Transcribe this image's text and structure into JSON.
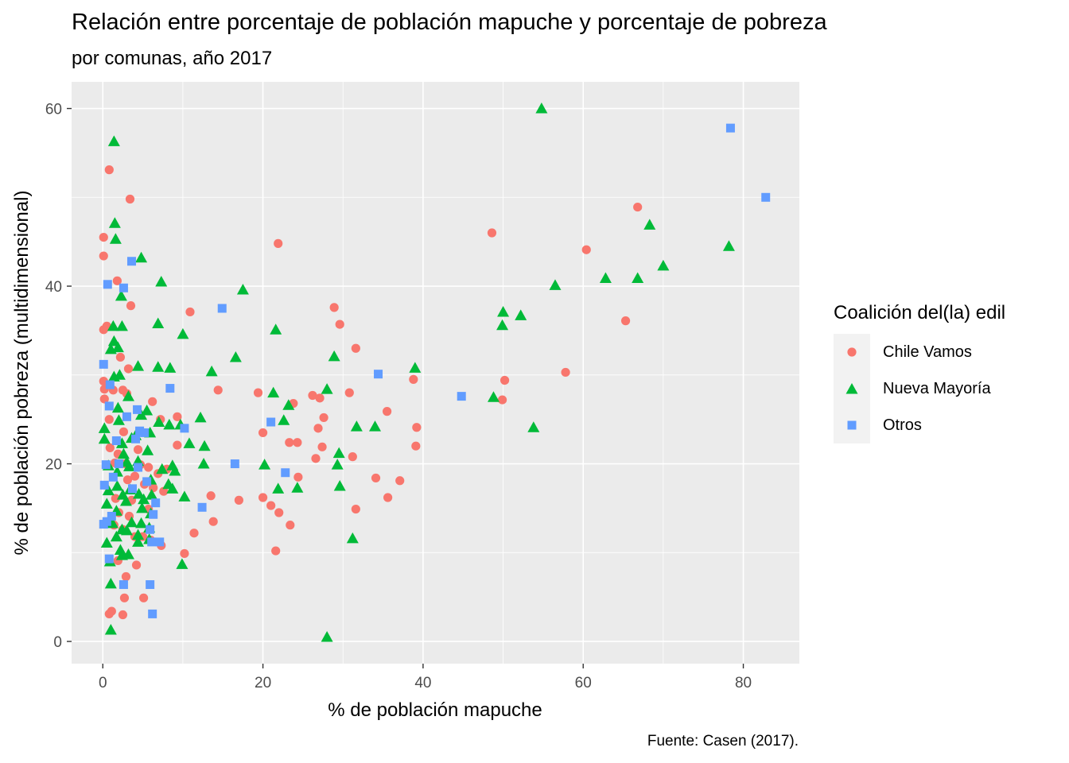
{
  "chart_data": {
    "type": "scatter",
    "title": "Relación entre porcentaje de población mapuche y porcentaje de pobreza",
    "subtitle": "por comunas, año 2017",
    "xlabel": "% de población mapuche",
    "ylabel": "% de población pobreza (multidimensional)",
    "caption": "Fuente: Casen (2017).",
    "xlim": [
      -3.9,
      87
    ],
    "ylim": [
      -2.5,
      63
    ],
    "x_ticks": [
      0,
      20,
      40,
      60,
      80
    ],
    "y_ticks": [
      0,
      20,
      40,
      60
    ],
    "grid": true,
    "legend_title": "Coalición del(la) edil",
    "legend_position": "right",
    "series": [
      {
        "name": "Chile Vamos",
        "shape": "circle",
        "color": "#F8766D",
        "points": [
          [
            0.8,
            53.1
          ],
          [
            3.4,
            49.8
          ],
          [
            0.1,
            45.5
          ],
          [
            0.1,
            43.4
          ],
          [
            1.8,
            40.6
          ],
          [
            3.5,
            37.8
          ],
          [
            0.5,
            35.5
          ],
          [
            0.1,
            35.1
          ],
          [
            2.2,
            32.0
          ],
          [
            3.2,
            30.7
          ],
          [
            0.1,
            29.3
          ],
          [
            0.2,
            28.4
          ],
          [
            1.3,
            28.3
          ],
          [
            2.5,
            28.3
          ],
          [
            3.0,
            27.9
          ],
          [
            0.2,
            27.3
          ],
          [
            6.2,
            27.0
          ],
          [
            7.2,
            25.0
          ],
          [
            9.3,
            25.3
          ],
          [
            0.8,
            25.0
          ],
          [
            2.6,
            23.6
          ],
          [
            4.4,
            21.6
          ],
          [
            0.9,
            21.8
          ],
          [
            1.9,
            21.1
          ],
          [
            1.5,
            20.1
          ],
          [
            2.8,
            20.0
          ],
          [
            4.7,
            19.9
          ],
          [
            5.7,
            19.6
          ],
          [
            6.9,
            18.9
          ],
          [
            8.0,
            19.4
          ],
          [
            3.1,
            18.2
          ],
          [
            4.0,
            18.6
          ],
          [
            5.2,
            17.7
          ],
          [
            6.3,
            17.3
          ],
          [
            7.6,
            16.9
          ],
          [
            1.6,
            16.1
          ],
          [
            3.6,
            15.9
          ],
          [
            5.7,
            14.9
          ],
          [
            2.0,
            14.5
          ],
          [
            3.3,
            14.1
          ],
          [
            1.4,
            13.1
          ],
          [
            2.5,
            12.6
          ],
          [
            4.0,
            11.8
          ],
          [
            5.0,
            11.8
          ],
          [
            6.0,
            11.4
          ],
          [
            7.3,
            10.8
          ],
          [
            1.9,
            9.1
          ],
          [
            4.2,
            8.6
          ],
          [
            2.9,
            7.3
          ],
          [
            2.7,
            4.9
          ],
          [
            5.1,
            4.9
          ],
          [
            1.1,
            3.4
          ],
          [
            0.8,
            3.1
          ],
          [
            2.5,
            3.0
          ],
          [
            10.9,
            37.1
          ],
          [
            21.9,
            44.8
          ],
          [
            14.4,
            28.3
          ],
          [
            9.3,
            22.1
          ],
          [
            13.5,
            16.4
          ],
          [
            17.0,
            15.9
          ],
          [
            13.8,
            13.5
          ],
          [
            11.4,
            12.2
          ],
          [
            10.2,
            9.9
          ],
          [
            20.0,
            16.2
          ],
          [
            21.0,
            15.3
          ],
          [
            22.0,
            14.5
          ],
          [
            23.4,
            13.1
          ],
          [
            21.6,
            10.2
          ],
          [
            19.4,
            28.0
          ],
          [
            20.0,
            23.5
          ],
          [
            23.3,
            22.4
          ],
          [
            24.3,
            22.4
          ],
          [
            23.8,
            26.8
          ],
          [
            26.2,
            27.7
          ],
          [
            27.1,
            27.4
          ],
          [
            27.6,
            25.2
          ],
          [
            26.9,
            24.0
          ],
          [
            27.4,
            21.9
          ],
          [
            26.6,
            20.6
          ],
          [
            24.4,
            18.5
          ],
          [
            28.9,
            37.6
          ],
          [
            29.6,
            35.7
          ],
          [
            31.6,
            33.0
          ],
          [
            30.8,
            28.0
          ],
          [
            31.2,
            20.8
          ],
          [
            31.6,
            14.9
          ],
          [
            34.1,
            18.4
          ],
          [
            35.5,
            25.9
          ],
          [
            35.6,
            16.2
          ],
          [
            37.1,
            18.1
          ],
          [
            38.8,
            29.5
          ],
          [
            39.2,
            24.1
          ],
          [
            39.1,
            22.0
          ],
          [
            48.6,
            46.0
          ],
          [
            50.2,
            29.4
          ],
          [
            49.9,
            27.2
          ],
          [
            57.8,
            30.3
          ],
          [
            60.4,
            44.1
          ],
          [
            65.3,
            36.1
          ],
          [
            66.8,
            48.9
          ]
        ]
      },
      {
        "name": "Nueva Mayoría",
        "shape": "triangle",
        "color": "#00BA38",
        "points": [
          [
            1.4,
            56.3
          ],
          [
            1.5,
            47.1
          ],
          [
            1.6,
            45.3
          ],
          [
            4.8,
            43.2
          ],
          [
            2.3,
            38.9
          ],
          [
            1.3,
            35.5
          ],
          [
            2.4,
            35.5
          ],
          [
            1.4,
            33.8
          ],
          [
            1.0,
            32.9
          ],
          [
            1.9,
            33.1
          ],
          [
            4.4,
            31.0
          ],
          [
            2.1,
            30.0
          ],
          [
            1.4,
            29.8
          ],
          [
            3.2,
            27.6
          ],
          [
            1.9,
            26.3
          ],
          [
            0.2,
            24.0
          ],
          [
            2.0,
            24.9
          ],
          [
            3.6,
            22.9
          ],
          [
            4.1,
            23.2
          ],
          [
            4.8,
            25.5
          ],
          [
            5.5,
            26.0
          ],
          [
            7.0,
            24.7
          ],
          [
            5.9,
            23.5
          ],
          [
            0.2,
            22.8
          ],
          [
            2.4,
            22.3
          ],
          [
            2.6,
            21.1
          ],
          [
            3.0,
            20.2
          ],
          [
            0.7,
            19.8
          ],
          [
            1.8,
            19.1
          ],
          [
            3.3,
            19.7
          ],
          [
            4.4,
            20.3
          ],
          [
            5.6,
            21.5
          ],
          [
            6.0,
            18.2
          ],
          [
            7.4,
            19.4
          ],
          [
            8.2,
            17.7
          ],
          [
            0.7,
            17.0
          ],
          [
            1.8,
            17.5
          ],
          [
            2.5,
            16.5
          ],
          [
            3.4,
            17.1
          ],
          [
            4.5,
            16.6
          ],
          [
            5.1,
            16.0
          ],
          [
            6.1,
            16.5
          ],
          [
            0.5,
            15.5
          ],
          [
            1.7,
            14.7
          ],
          [
            2.9,
            15.8
          ],
          [
            4.9,
            15.0
          ],
          [
            6.0,
            14.4
          ],
          [
            1.2,
            13.3
          ],
          [
            2.4,
            12.6
          ],
          [
            3.6,
            13.4
          ],
          [
            4.8,
            13.3
          ],
          [
            5.8,
            12.8
          ],
          [
            0.5,
            11.1
          ],
          [
            1.7,
            11.8
          ],
          [
            3.0,
            12.5
          ],
          [
            4.4,
            12.0
          ],
          [
            5.8,
            11.5
          ],
          [
            2.2,
            10.3
          ],
          [
            3.2,
            9.8
          ],
          [
            4.4,
            11.2
          ],
          [
            0.9,
            9.0
          ],
          [
            2.4,
            9.7
          ],
          [
            1.0,
            6.5
          ],
          [
            1.0,
            1.3
          ],
          [
            6.9,
            35.8
          ],
          [
            7.3,
            40.5
          ],
          [
            10.0,
            34.6
          ],
          [
            6.9,
            30.9
          ],
          [
            8.4,
            30.8
          ],
          [
            8.3,
            24.4
          ],
          [
            9.7,
            24.4
          ],
          [
            10.8,
            22.3
          ],
          [
            8.7,
            19.8
          ],
          [
            9.0,
            19.2
          ],
          [
            8.7,
            17.2
          ],
          [
            10.2,
            16.3
          ],
          [
            9.9,
            8.7
          ],
          [
            12.2,
            25.2
          ],
          [
            12.7,
            22.0
          ],
          [
            13.6,
            30.4
          ],
          [
            12.6,
            20.0
          ],
          [
            16.6,
            32.0
          ],
          [
            17.5,
            39.6
          ],
          [
            21.6,
            35.1
          ],
          [
            21.3,
            28.0
          ],
          [
            23.2,
            26.6
          ],
          [
            22.6,
            24.9
          ],
          [
            20.2,
            19.9
          ],
          [
            21.9,
            17.2
          ],
          [
            24.3,
            17.3
          ],
          [
            28.0,
            28.4
          ],
          [
            28.9,
            32.1
          ],
          [
            29.5,
            21.2
          ],
          [
            29.3,
            19.9
          ],
          [
            29.6,
            17.5
          ],
          [
            31.7,
            24.2
          ],
          [
            34.0,
            24.2
          ],
          [
            31.2,
            11.6
          ],
          [
            28.0,
            0.5
          ],
          [
            39.0,
            30.8
          ],
          [
            48.8,
            27.5
          ],
          [
            49.9,
            35.6
          ],
          [
            50.0,
            37.1
          ],
          [
            52.2,
            36.7
          ],
          [
            53.8,
            24.1
          ],
          [
            54.8,
            60.0
          ],
          [
            56.5,
            40.1
          ],
          [
            62.8,
            40.9
          ],
          [
            66.8,
            40.9
          ],
          [
            68.3,
            46.9
          ],
          [
            70.0,
            42.3
          ],
          [
            78.2,
            44.5
          ]
        ]
      },
      {
        "name": "Otros",
        "shape": "square",
        "color": "#619CFF",
        "points": [
          [
            0.6,
            40.2
          ],
          [
            2.6,
            39.8
          ],
          [
            3.6,
            42.8
          ],
          [
            0.1,
            31.2
          ],
          [
            0.9,
            28.9
          ],
          [
            0.8,
            26.5
          ],
          [
            3.0,
            25.3
          ],
          [
            4.3,
            26.1
          ],
          [
            4.6,
            23.7
          ],
          [
            4.1,
            22.8
          ],
          [
            5.2,
            23.5
          ],
          [
            1.7,
            22.6
          ],
          [
            0.4,
            19.9
          ],
          [
            2.0,
            20.0
          ],
          [
            3.7,
            17.2
          ],
          [
            4.4,
            19.6
          ],
          [
            5.5,
            18.0
          ],
          [
            0.2,
            17.6
          ],
          [
            1.3,
            18.5
          ],
          [
            6.6,
            15.6
          ],
          [
            6.3,
            14.3
          ],
          [
            0.5,
            13.5
          ],
          [
            0.1,
            13.2
          ],
          [
            1.1,
            14.1
          ],
          [
            5.9,
            12.6
          ],
          [
            6.1,
            11.2
          ],
          [
            7.1,
            11.2
          ],
          [
            0.8,
            9.3
          ],
          [
            2.6,
            6.4
          ],
          [
            5.9,
            6.4
          ],
          [
            6.2,
            3.1
          ],
          [
            8.4,
            28.5
          ],
          [
            10.2,
            24.0
          ],
          [
            12.4,
            15.1
          ],
          [
            14.9,
            37.5
          ],
          [
            16.5,
            20.0
          ],
          [
            21.0,
            24.7
          ],
          [
            22.8,
            19.0
          ],
          [
            34.4,
            30.1
          ],
          [
            44.8,
            27.6
          ],
          [
            78.4,
            57.8
          ],
          [
            82.8,
            50.0
          ]
        ]
      }
    ]
  }
}
